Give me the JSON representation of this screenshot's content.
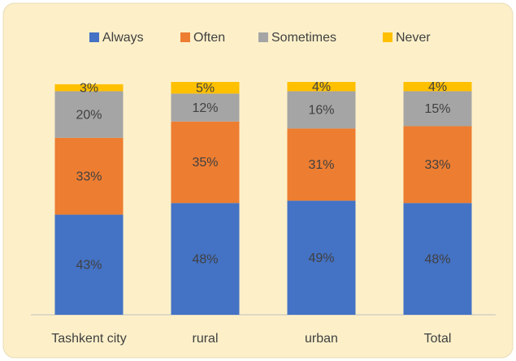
{
  "chart_data": {
    "type": "bar",
    "stacked": true,
    "categories": [
      "Tashkent city",
      "rural",
      "urban",
      "Total"
    ],
    "series": [
      {
        "name": "Always",
        "color": "#4472c4",
        "values": [
          43,
          48,
          49,
          48
        ],
        "value_labels": [
          "43%",
          "48%",
          "49%",
          "48%"
        ]
      },
      {
        "name": "Often",
        "color": "#ed7d31",
        "values": [
          33,
          35,
          31,
          33
        ],
        "value_labels": [
          "33%",
          "35%",
          "31%",
          "33%"
        ]
      },
      {
        "name": "Sometimes",
        "color": "#a5a5a5",
        "values": [
          20,
          12,
          16,
          15
        ],
        "value_labels": [
          "20%",
          "12%",
          "16%",
          "15%"
        ]
      },
      {
        "name": "Never",
        "color": "#ffc000",
        "values": [
          3,
          5,
          4,
          4
        ],
        "value_labels": [
          "3%",
          "5%",
          "4%",
          "4%"
        ]
      }
    ],
    "ylim": [
      0,
      100
    ],
    "legend": "top"
  }
}
